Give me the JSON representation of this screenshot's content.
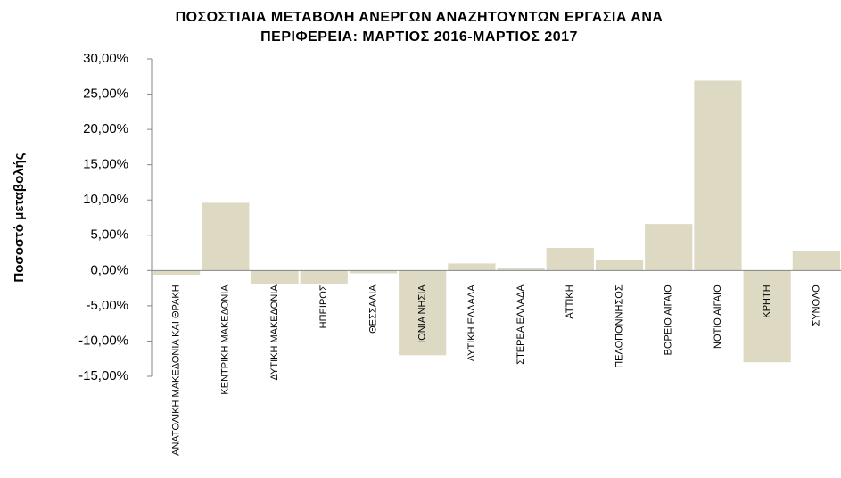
{
  "chart_data": {
    "type": "bar",
    "title": [
      "ΠΟΣΟΣΤΙΑΙΑ ΜΕΤΑΒΟΛΗ ΑΝΕΡΓΩΝ ΑΝΑΖΗΤΟΥΝΤΩΝ ΕΡΓΑΣΙΑ ΑΝΑ",
      "ΠΕΡΙΦΕΡΕΙΑ: ΜΑΡΤΙΟΣ 2016-ΜΑΡΤΙΟΣ 2017"
    ],
    "y_label": "Ποσοστό μεταβολής",
    "categories": [
      "ΑΝΑΤΟΛΙΚΗ ΜΑΚΕΔΟΝΙΑ ΚΑΙ ΘΡΑΚΗ",
      "ΚΕΝΤΡΙΚΗ ΜΑΚΕΔΟΝΙΑ",
      "ΔΥΤΙΚΗ ΜΑΚΕΔΟΝΙΑ",
      "ΗΠΕΙΡΟΣ",
      "ΘΕΣΣΑΛΙΑ",
      "ΙΟΝΙΑ ΝΗΣΙΑ",
      "ΔΥΤΙΚΗ ΕΛΛΑΔΑ",
      "ΣΤΕΡΕΑ ΕΛΛΑΔΑ",
      "ΑΤΤΙΚΗ",
      "ΠΕΛΟΠΟΝΝΗΣΟΣ",
      "ΒΟΡΕΙΟ ΑΙΓΑΙΟ",
      "ΝΟΤΙΟ ΑΙΓΑΙΟ",
      "ΚΡΗΤΗ",
      "ΣΥΝΟΛΟ"
    ],
    "values": [
      -0.6,
      9.6,
      -1.9,
      -1.9,
      -0.4,
      -12.0,
      1.0,
      0.3,
      3.2,
      1.5,
      6.6,
      26.9,
      -13.0,
      2.7
    ],
    "color": "#ddd9c3",
    "ylim": [
      -15,
      30
    ],
    "yticks": [
      {
        "value": 30,
        "label": "30,00%"
      },
      {
        "value": 25,
        "label": "25,00%"
      },
      {
        "value": 20,
        "label": "20,00%"
      },
      {
        "value": 15,
        "label": "15,00%"
      },
      {
        "value": 10,
        "label": "10,00%"
      },
      {
        "value": 5,
        "label": "5,00%"
      },
      {
        "value": 0,
        "label": "0,00%"
      },
      {
        "value": -5,
        "label": "-5,00%"
      },
      {
        "value": -10,
        "label": "-10,00%"
      },
      {
        "value": -15,
        "label": "-15,00%"
      }
    ],
    "grid": false
  }
}
